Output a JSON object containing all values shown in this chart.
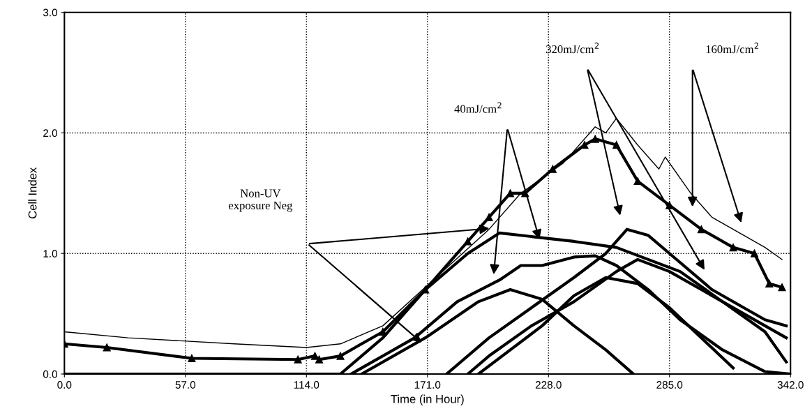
{
  "chart_data": {
    "type": "line",
    "xlabel": "Time (in Hour)",
    "ylabel": "Cell Index",
    "xlim": [
      0,
      342
    ],
    "ylim": [
      0,
      3.0
    ],
    "xticks": [
      {
        "value": 0,
        "label": "0.0"
      },
      {
        "value": 57,
        "label": "57.0"
      },
      {
        "value": 114,
        "label": "114.0"
      },
      {
        "value": 171,
        "label": "171.0"
      },
      {
        "value": 228,
        "label": "228.0"
      },
      {
        "value": 285,
        "label": "285.0"
      },
      {
        "value": 342,
        "label": "342.0"
      }
    ],
    "yticks": [
      {
        "value": 0,
        "label": "0.0"
      },
      {
        "value": 1,
        "label": "1.0"
      },
      {
        "value": 2,
        "label": "2.0"
      },
      {
        "value": 3,
        "label": "3.0"
      }
    ],
    "grid": true,
    "line_style": "solid",
    "series": [
      {
        "color": "#000000",
        "marker": "none",
        "x": [
          0,
          30,
          80,
          114,
          130,
          150,
          175,
          200,
          215,
          235,
          250,
          255,
          260,
          270,
          280,
          283,
          295,
          305,
          315,
          330,
          338
        ],
        "values": [
          0.35,
          0.3,
          0.25,
          0.22,
          0.25,
          0.4,
          0.8,
          1.2,
          1.5,
          1.75,
          2.05,
          2.0,
          2.12,
          1.9,
          1.7,
          1.8,
          1.5,
          1.3,
          1.2,
          1.05,
          0.95
        ]
      },
      {
        "color": "#000000",
        "marker": "triangle",
        "x": [
          0,
          20,
          60,
          110,
          118,
          120,
          130,
          150,
          170,
          190,
          200,
          210,
          217,
          230,
          245,
          250,
          260,
          270,
          285,
          300,
          315,
          325,
          332,
          338
        ],
        "values": [
          0.25,
          0.22,
          0.13,
          0.12,
          0.15,
          0.12,
          0.15,
          0.35,
          0.7,
          1.1,
          1.3,
          1.5,
          1.5,
          1.7,
          1.9,
          1.95,
          1.9,
          1.6,
          1.4,
          1.2,
          1.05,
          1.0,
          0.75,
          0.72
        ]
      },
      {
        "color": "#000000",
        "marker": "none",
        "x": [
          0,
          130,
          150,
          170,
          190,
          205,
          215,
          240,
          260,
          275,
          290,
          310,
          330,
          340
        ],
        "values": [
          0,
          0,
          0.3,
          0.7,
          1.0,
          1.17,
          1.15,
          1.1,
          1.05,
          0.95,
          0.85,
          0.6,
          0.35,
          0.1
        ]
      },
      {
        "color": "#000000",
        "marker": "none",
        "x": [
          135,
          165,
          185,
          205,
          215,
          225,
          240,
          250,
          260,
          275,
          290,
          310,
          330,
          342
        ],
        "values": [
          0,
          0.3,
          0.6,
          0.78,
          0.9,
          0.9,
          0.97,
          0.98,
          0.9,
          0.7,
          0.45,
          0.2,
          0.02,
          0
        ]
      },
      {
        "color": "#000000",
        "marker": "none",
        "x": [
          140,
          170,
          195,
          210,
          225,
          240,
          255,
          268
        ],
        "values": [
          0,
          0.3,
          0.6,
          0.7,
          0.62,
          0.4,
          0.2,
          0
        ]
      },
      {
        "color": "#000000",
        "marker": "none",
        "x": [
          180,
          200,
          220,
          240,
          255,
          265,
          275,
          285,
          295,
          305,
          320,
          330,
          340
        ],
        "values": [
          0,
          0.3,
          0.55,
          0.8,
          1.0,
          1.2,
          1.15,
          1.0,
          0.85,
          0.7,
          0.55,
          0.45,
          0.4
        ]
      },
      {
        "color": "#000000",
        "marker": "none",
        "x": [
          190,
          200,
          220,
          240,
          260,
          270,
          285,
          300,
          320,
          340
        ],
        "values": [
          0,
          0.15,
          0.4,
          0.6,
          0.85,
          0.95,
          0.85,
          0.7,
          0.5,
          0.3
        ]
      },
      {
        "color": "#000000",
        "marker": "none",
        "x": [
          195,
          225,
          240,
          255,
          270,
          285,
          300,
          315
        ],
        "values": [
          0,
          0.4,
          0.65,
          0.8,
          0.75,
          0.55,
          0.3,
          0.05
        ]
      }
    ],
    "annotations": [
      "Non-UV\nexposure Neg",
      "40mJ/cm$^{2}$",
      "320mJ/cm$^{2}$",
      "160mJ/cm$^{2}$"
    ]
  }
}
